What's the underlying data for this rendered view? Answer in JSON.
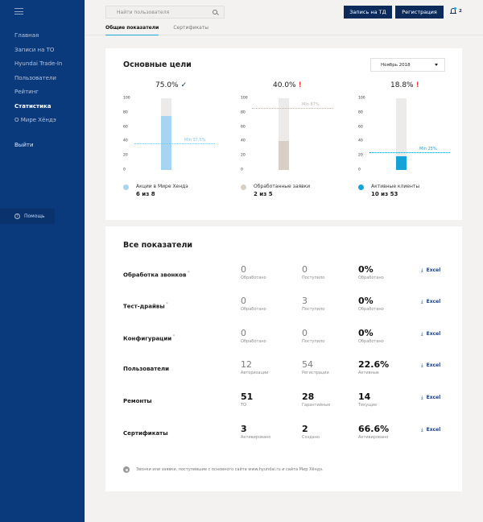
{
  "sidebar": {
    "menu_icon": "hamburger-icon",
    "items": [
      {
        "label": "Главная",
        "active": false
      },
      {
        "label": "Записи на ТО",
        "active": false
      },
      {
        "label": "Hyundai Trade-In",
        "active": false
      },
      {
        "label": "Пользователи",
        "active": false
      },
      {
        "label": "Рейтинг",
        "active": false
      },
      {
        "label": "Статистика",
        "active": true
      },
      {
        "label": "О Мире Хёндэ",
        "active": false
      }
    ],
    "logout_label": "Выйти",
    "help_label": "Помощь",
    "help_icon": "?"
  },
  "header": {
    "search_placeholder": "Найти пользователя",
    "buttons": {
      "test_drive": "Запись на ТД",
      "registration": "Регистрация"
    },
    "notifications_count": "2",
    "tabs": [
      {
        "label": "Общие показатели",
        "active": true
      },
      {
        "label": "Сертификаты",
        "active": false
      }
    ]
  },
  "goals": {
    "title": "Основные цели",
    "period": "Ноябрь 2018",
    "y_ticks": [
      "100",
      "80",
      "60",
      "40",
      "20",
      "0"
    ],
    "items": [
      {
        "percent_label": "75.0%",
        "value": 75.0,
        "min_value": 37.5,
        "min_label": "Min 37.5%",
        "status": "ok",
        "status_mark": "✓",
        "fill_color": "#a6d4f3",
        "min_color": "#7fc3ec",
        "legend_name": "Акции в Мире Хендэ",
        "legend_count": "6 из 8"
      },
      {
        "percent_label": "40.0%",
        "value": 40.0,
        "min_value": 87,
        "min_label": "Min 87%",
        "status": "bad",
        "status_mark": "!",
        "fill_color": "#d9d0c5",
        "min_color": "#bdb6ad",
        "legend_name": "Обработанные заявки",
        "legend_count": "2 из 5"
      },
      {
        "percent_label": "18.8%",
        "value": 18.8,
        "min_value": 25,
        "min_label": "Min 25%",
        "status": "bad",
        "status_mark": "!",
        "fill_color": "#14a3d6",
        "min_color": "#14a3d6",
        "legend_name": "Активные клиенты",
        "legend_count": "10 из 53"
      }
    ]
  },
  "metrics": {
    "title": "Все показатели",
    "export_label": "Excel",
    "export_icon": "download-icon",
    "rows": [
      {
        "name": "Обработка звонков",
        "asterisk": true,
        "cells": [
          {
            "value": "0",
            "label": "Обработано",
            "style": "muted"
          },
          {
            "value": "0",
            "label": "Поступило",
            "style": "muted"
          },
          {
            "value": "0%",
            "label": "Обработано",
            "style": "strong"
          }
        ]
      },
      {
        "name": "Тест-драйвы",
        "asterisk": true,
        "cells": [
          {
            "value": "0",
            "label": "Обработано",
            "style": "muted"
          },
          {
            "value": "3",
            "label": "Поступило",
            "style": "muted"
          },
          {
            "value": "0%",
            "label": "Обработано",
            "style": "strong"
          }
        ]
      },
      {
        "name": "Конфигурации",
        "asterisk": true,
        "cells": [
          {
            "value": "0",
            "label": "Обработано",
            "style": "muted"
          },
          {
            "value": "0",
            "label": "Поступило",
            "style": "muted"
          },
          {
            "value": "0%",
            "label": "Обработано",
            "style": "strong"
          }
        ]
      },
      {
        "name": "Пользователи",
        "asterisk": false,
        "cells": [
          {
            "value": "12",
            "label": "Авторизации",
            "style": "muted"
          },
          {
            "value": "54",
            "label": "Регистрации",
            "style": "muted"
          },
          {
            "value": "22.6%",
            "label": "Активные",
            "style": "strong"
          }
        ]
      },
      {
        "name": "Ремонты",
        "asterisk": false,
        "cells": [
          {
            "value": "51",
            "label": "ТО",
            "style": "strong"
          },
          {
            "value": "28",
            "label": "Гарантийные",
            "style": "strong"
          },
          {
            "value": "14",
            "label": "Текущие",
            "style": "strong"
          }
        ]
      },
      {
        "name": "Сертификаты",
        "asterisk": false,
        "cells": [
          {
            "value": "3",
            "label": "Активировано",
            "style": "strong"
          },
          {
            "value": "2",
            "label": "Создано",
            "style": "strong"
          },
          {
            "value": "66.6%",
            "label": "Активировано",
            "style": "strong"
          }
        ]
      }
    ],
    "footnote": "Звонки или заявки, поступившие с основного сайта www.hyundai.ru и сайта Мир Хёндэ."
  }
}
